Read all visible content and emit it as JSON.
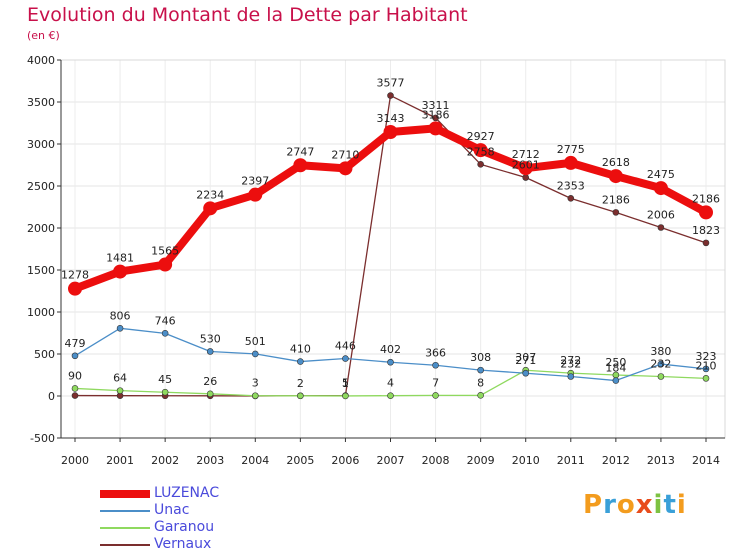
{
  "header": {
    "title": "Evolution du Montant de la Dette par Habitant",
    "subtitle": "(en €)"
  },
  "logo": {
    "letters": [
      "P",
      "r",
      "o",
      "x",
      "i",
      "t",
      "i"
    ],
    "colors": [
      "#f39c1e",
      "#3aa0d8",
      "#f39c1e",
      "#e84c1c",
      "#7dc242",
      "#3aa0d8",
      "#f39c1e"
    ]
  },
  "chart_data": {
    "type": "line",
    "title": "Evolution du Montant de la Dette par Habitant",
    "subtitle": "(en €)",
    "xlabel": "",
    "ylabel": "",
    "x": [
      "2000",
      "2001",
      "2002",
      "2003",
      "2004",
      "2005",
      "2006",
      "2007",
      "2008",
      "2009",
      "2010",
      "2011",
      "2012",
      "2013",
      "2014"
    ],
    "ylim": [
      -500,
      4000
    ],
    "yticks": [
      "-500",
      "0",
      "500",
      "1000",
      "1500",
      "2000",
      "2500",
      "3000",
      "3500",
      "4000"
    ],
    "grid": true,
    "legend_position": "bottom-left",
    "series": [
      {
        "name": "LUZENAC",
        "color": "#ec0e0e",
        "thick": true,
        "values": [
          1278,
          1481,
          1565,
          2234,
          2397,
          2747,
          2710,
          3143,
          3186,
          2927,
          2712,
          2775,
          2618,
          2475,
          2186
        ],
        "labels": [
          "1278",
          "1481",
          "1565",
          "2234",
          "2397",
          "2747",
          "2710",
          "3143",
          "3186",
          "2927",
          "2712",
          "2775",
          "2618",
          "2475",
          "2186"
        ]
      },
      {
        "name": "Unac",
        "color": "#4b8ec8",
        "thick": false,
        "values": [
          479,
          806,
          746,
          530,
          501,
          410,
          446,
          402,
          366,
          308,
          271,
          232,
          184,
          380,
          323
        ],
        "labels": [
          "479",
          "806",
          "746",
          "530",
          "501",
          "410",
          "446",
          "402",
          "366",
          "308",
          "271",
          "232",
          "184",
          "380",
          "323"
        ]
      },
      {
        "name": "Garanou",
        "color": "#8fd95f",
        "thick": false,
        "values": [
          90,
          64,
          45,
          26,
          3,
          2,
          1,
          4,
          7,
          8,
          307,
          272,
          250,
          232,
          210
        ],
        "labels": [
          "90",
          "64",
          "45",
          "26",
          "3",
          "2",
          "1",
          "4",
          "7",
          "8",
          "307",
          "272",
          "250",
          "232",
          "210"
        ]
      },
      {
        "name": "Vernaux",
        "color": "#7b2e2e",
        "thick": false,
        "values": [
          5,
          4,
          3,
          2,
          1,
          3,
          5,
          3577,
          3311,
          2758,
          2601,
          2353,
          2186,
          2006,
          1823
        ],
        "labels": [
          "",
          "",
          "",
          "",
          "",
          "",
          "5",
          "3577",
          "3311",
          "2758",
          "2601",
          "2353",
          "2186",
          "2006",
          "1823"
        ]
      }
    ]
  }
}
